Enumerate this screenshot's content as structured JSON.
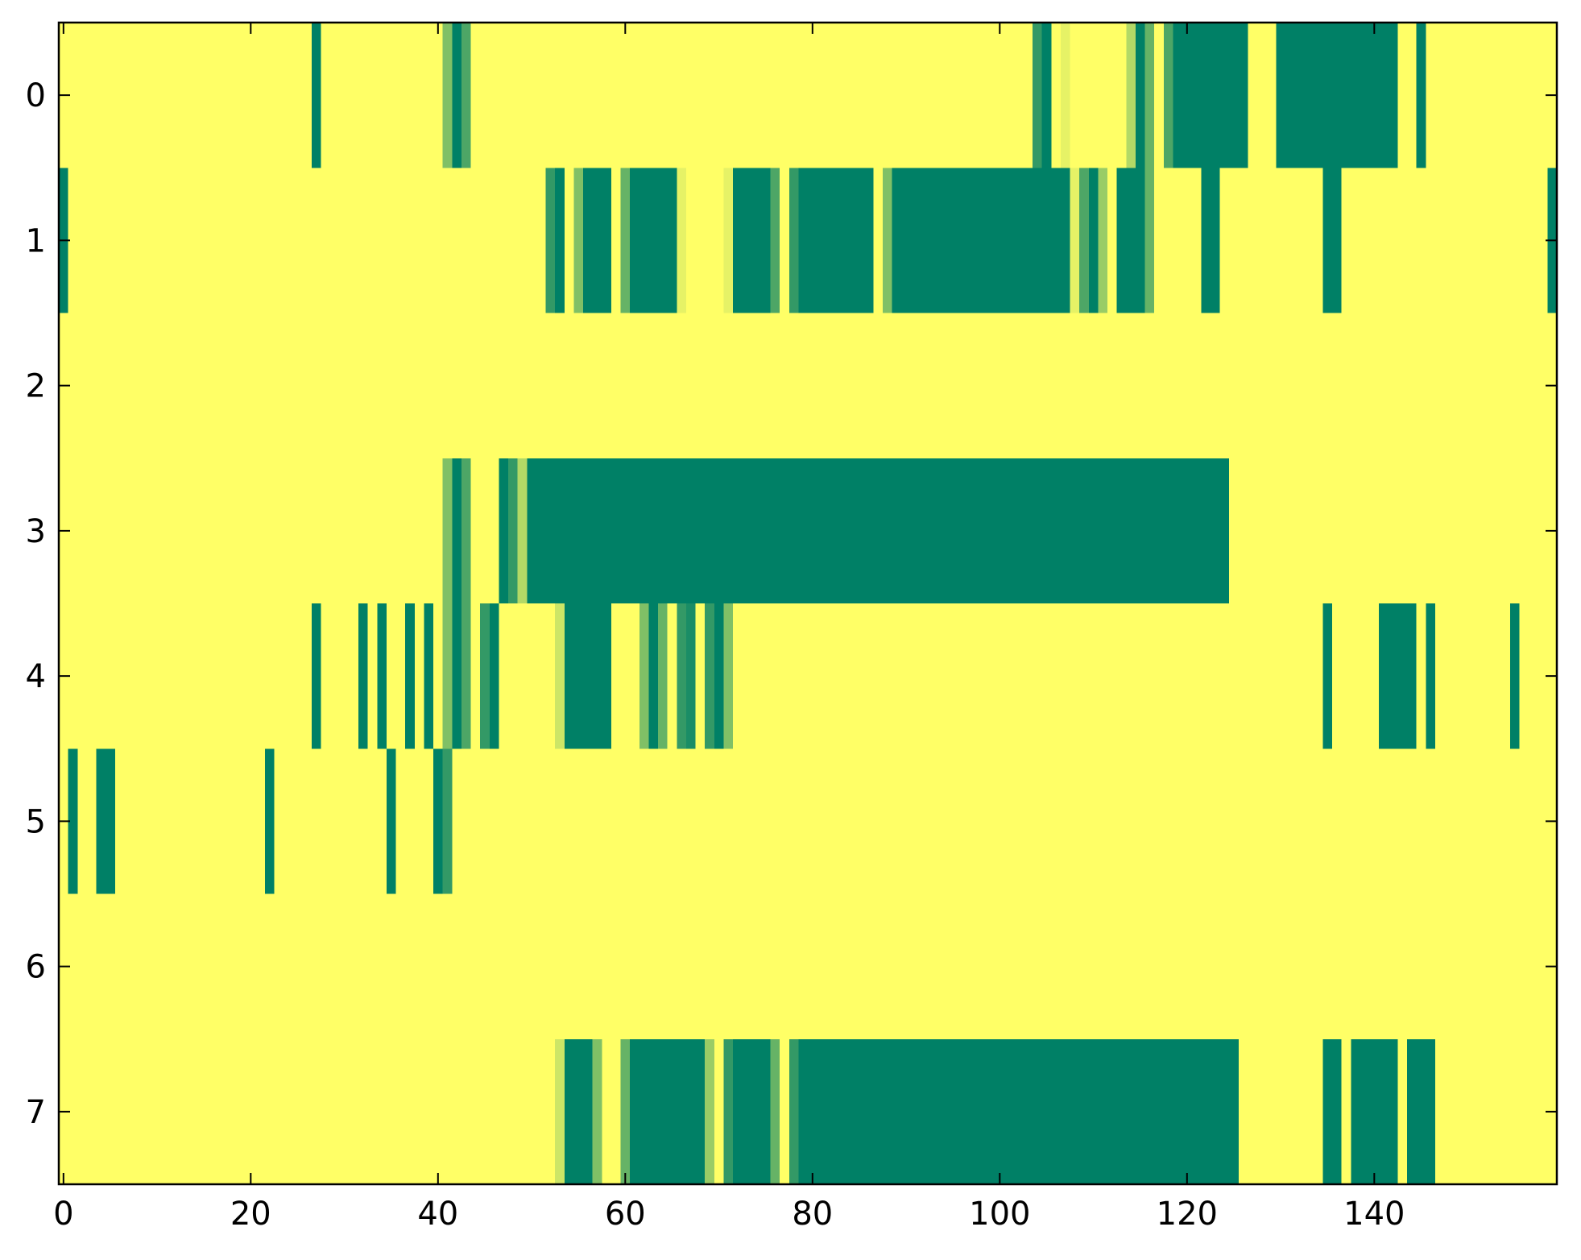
{
  "chart_data": {
    "type": "heatmap",
    "title": "",
    "xlabel": "",
    "ylabel": "",
    "xlim": [
      -0.5,
      159.5
    ],
    "ylim": [
      7.5,
      -0.5
    ],
    "grid": false,
    "legend": "none",
    "colormap": "summer_r",
    "colors": {
      "low": "#ffff66",
      "high": "#008066"
    },
    "x_ticks": [
      0,
      20,
      40,
      60,
      80,
      100,
      120,
      140
    ],
    "x_tick_labels": [
      "0",
      "20",
      "40",
      "60",
      "80",
      "100",
      "120",
      "140"
    ],
    "y_ticks": [
      0,
      1,
      2,
      3,
      4,
      5,
      6,
      7
    ],
    "y_tick_labels": [
      "0",
      "1",
      "2",
      "3",
      "4",
      "5",
      "6",
      "7"
    ],
    "n_columns": 160,
    "rows": [
      {
        "row": 0,
        "segments": [
          [
            27,
            27,
            1
          ],
          [
            41,
            41,
            0.5
          ],
          [
            42,
            42,
            1
          ],
          [
            43,
            43,
            0.7
          ],
          [
            104,
            104,
            0.8
          ],
          [
            105,
            105,
            1
          ],
          [
            107,
            107,
            0.1
          ],
          [
            114,
            114,
            0.3
          ],
          [
            115,
            115,
            1
          ],
          [
            116,
            116,
            0.6
          ],
          [
            118,
            118,
            0.7
          ],
          [
            119,
            126,
            1
          ],
          [
            130,
            142,
            1
          ],
          [
            145,
            145,
            1
          ]
        ]
      },
      {
        "row": 1,
        "segments": [
          [
            -0.5,
            0,
            1
          ],
          [
            52,
            52,
            0.8
          ],
          [
            53,
            53,
            1
          ],
          [
            55,
            55,
            0.5
          ],
          [
            56,
            58,
            1
          ],
          [
            60,
            60,
            0.6
          ],
          [
            61,
            65,
            1
          ],
          [
            66,
            66,
            0.1
          ],
          [
            71,
            71,
            0.1
          ],
          [
            72,
            75,
            1
          ],
          [
            76,
            76,
            0.7
          ],
          [
            78,
            78,
            0.8
          ],
          [
            79,
            86,
            1
          ],
          [
            88,
            88,
            0.5
          ],
          [
            89,
            107,
            1
          ],
          [
            108,
            108,
            0.1
          ],
          [
            109,
            109,
            0.7
          ],
          [
            110,
            110,
            1
          ],
          [
            111,
            111,
            0.4
          ],
          [
            113,
            115,
            1
          ],
          [
            116,
            116,
            0.6
          ],
          [
            122,
            123,
            1
          ],
          [
            135,
            136,
            1
          ],
          [
            159,
            159.5,
            1
          ]
        ]
      },
      {
        "row": 2,
        "segments": []
      },
      {
        "row": 3,
        "segments": [
          [
            41,
            41,
            0.5
          ],
          [
            42,
            42,
            1
          ],
          [
            43,
            43,
            0.7
          ],
          [
            47,
            47,
            1
          ],
          [
            48,
            48,
            0.8
          ],
          [
            49,
            49,
            0.3
          ],
          [
            50,
            50,
            1
          ],
          [
            51,
            124,
            1
          ]
        ]
      },
      {
        "row": 4,
        "segments": [
          [
            27,
            27,
            1
          ],
          [
            32,
            32,
            1
          ],
          [
            34,
            34,
            1
          ],
          [
            37,
            37,
            1
          ],
          [
            39,
            39,
            1
          ],
          [
            41,
            41,
            0.5
          ],
          [
            42,
            42,
            1
          ],
          [
            43,
            43,
            0.7
          ],
          [
            45,
            45,
            0.8
          ],
          [
            46,
            46,
            1
          ],
          [
            53,
            53,
            0.2
          ],
          [
            54,
            58,
            1
          ],
          [
            62,
            62,
            0.5
          ],
          [
            63,
            63,
            1
          ],
          [
            64,
            64,
            0.6
          ],
          [
            66,
            66,
            0.8
          ],
          [
            67,
            67,
            0.9
          ],
          [
            69,
            69,
            0.8
          ],
          [
            70,
            70,
            1
          ],
          [
            71,
            71,
            0.5
          ],
          [
            135,
            135,
            1
          ],
          [
            141,
            144,
            1
          ],
          [
            146,
            146,
            1
          ],
          [
            155,
            155,
            1
          ]
        ]
      },
      {
        "row": 5,
        "segments": [
          [
            1,
            1,
            1
          ],
          [
            4,
            5,
            1
          ],
          [
            22,
            22,
            1
          ],
          [
            35,
            35,
            1
          ],
          [
            40,
            40,
            1
          ],
          [
            41,
            41,
            0.8
          ]
        ]
      },
      {
        "row": 6,
        "segments": []
      },
      {
        "row": 7,
        "segments": [
          [
            53,
            53,
            0.2
          ],
          [
            54,
            56,
            1
          ],
          [
            57,
            57,
            0.5
          ],
          [
            60,
            60,
            0.6
          ],
          [
            61,
            68,
            1
          ],
          [
            69,
            69,
            0.4
          ],
          [
            71,
            71,
            0.8
          ],
          [
            72,
            75,
            1
          ],
          [
            76,
            76,
            0.6
          ],
          [
            78,
            78,
            0.8
          ],
          [
            79,
            125,
            1
          ],
          [
            135,
            136,
            1
          ],
          [
            138,
            142,
            1
          ],
          [
            144,
            146,
            1
          ]
        ]
      }
    ]
  }
}
